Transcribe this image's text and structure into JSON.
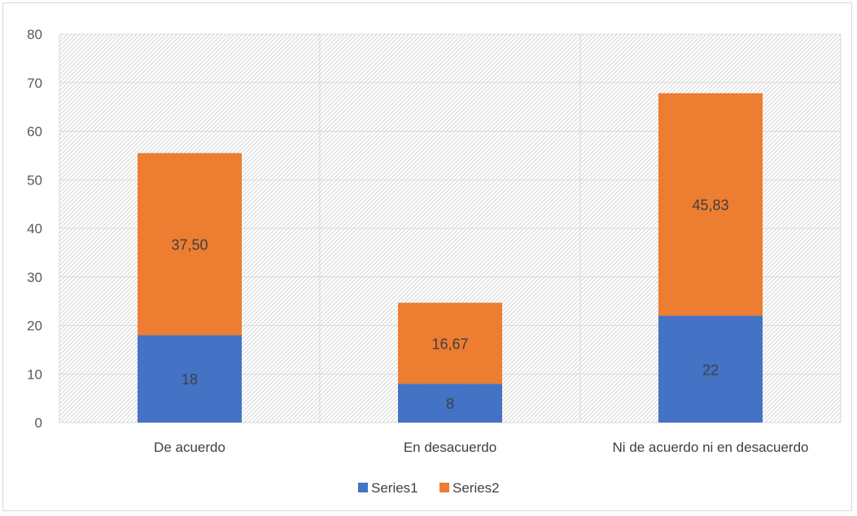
{
  "chart_data": {
    "type": "bar",
    "stacked": true,
    "categories": [
      "De acuerdo",
      "En desacuerdo",
      "Ni de acuerdo ni en desacuerdo"
    ],
    "series": [
      {
        "name": "Series1",
        "values": [
          18,
          8,
          22
        ],
        "labels": [
          "18",
          "8",
          "22"
        ],
        "color": "#4472c4"
      },
      {
        "name": "Series2",
        "values": [
          37.5,
          16.67,
          45.83
        ],
        "labels": [
          "37,50",
          "16,67",
          "45,83"
        ],
        "color": "#ed7d31"
      }
    ],
    "ylim": [
      0,
      80
    ],
    "yticks": [
      "0",
      "10",
      "20",
      "30",
      "40",
      "50",
      "60",
      "70",
      "80"
    ],
    "grid": true,
    "plot_background": "hatched",
    "legend_position": "bottom",
    "gridline_color": "#d9d9d9"
  }
}
